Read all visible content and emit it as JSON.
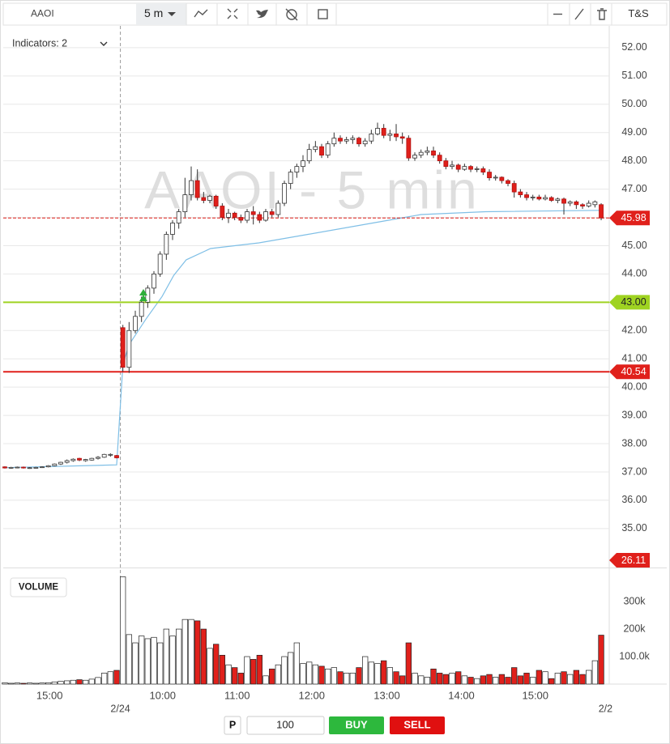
{
  "toolbar": {
    "symbol": "AAOI",
    "interval": "5 m",
    "ts": "T&S"
  },
  "indicators": "Indicators: 2",
  "chart_data": {
    "type": "candlestick",
    "watermark": "AAOI - 5 min",
    "up_color": "#ffffff",
    "down_color": "#e0201b",
    "vwap_color": "#7fbfe6",
    "xlim": [
      -0.26,
      97.3
    ],
    "xticks": [
      {
        "value": 7.2,
        "label": "15:00"
      },
      {
        "value": 25.4,
        "label": "10:00"
      },
      {
        "value": 37.4,
        "label": "11:00"
      },
      {
        "value": 49.4,
        "label": "12:00"
      },
      {
        "value": 61.5,
        "label": "13:00"
      },
      {
        "value": 73.5,
        "label": "14:00"
      },
      {
        "value": 85.4,
        "label": "15:00"
      }
    ],
    "date_ticks": [
      {
        "value": 18.6,
        "label": "2/24"
      },
      {
        "value": 96.7,
        "label": "2/2"
      }
    ],
    "ylim": [
      33.65,
      52.77
    ],
    "yticks": [
      {
        "value": 35,
        "label": "35.00"
      },
      {
        "value": 36,
        "label": "36.00"
      },
      {
        "value": 37,
        "label": "37.00"
      },
      {
        "value": 38,
        "label": "38.00"
      },
      {
        "value": 39,
        "label": "39.00"
      },
      {
        "value": 40,
        "label": "40.00"
      },
      {
        "value": 41,
        "label": "41.00"
      },
      {
        "value": 42,
        "label": "42.00"
      },
      {
        "value": 43,
        "label": "43.00"
      },
      {
        "value": 44,
        "label": "44.00"
      },
      {
        "value": 45,
        "label": "45.00"
      },
      {
        "value": 46,
        "label": "46.00"
      },
      {
        "value": 47,
        "label": "47.00"
      },
      {
        "value": 48,
        "label": "48.00"
      },
      {
        "value": 49,
        "label": "49.00"
      },
      {
        "value": 50,
        "label": "50.00"
      },
      {
        "value": 51,
        "label": "51.00"
      },
      {
        "value": 52,
        "label": "52.00"
      }
    ],
    "grid": true,
    "candles": {
      "x": [
        0,
        1,
        2,
        3,
        4,
        5,
        6,
        7,
        8,
        9,
        10,
        11,
        12,
        13,
        14,
        15,
        16,
        17,
        18,
        19,
        20,
        21,
        22,
        23,
        24,
        25,
        26,
        27,
        28,
        29,
        30,
        31,
        32,
        33,
        34,
        35,
        36,
        37,
        38,
        39,
        40,
        41,
        42,
        43,
        44,
        45,
        46,
        47,
        48,
        49,
        50,
        51,
        52,
        53,
        54,
        55,
        56,
        57,
        58,
        59,
        60,
        61,
        62,
        63,
        64,
        65,
        66,
        67,
        68,
        69,
        70,
        71,
        72,
        73,
        74,
        75,
        76,
        77,
        78,
        79,
        80,
        81,
        82,
        83,
        84,
        85,
        86,
        87,
        88,
        89,
        90,
        91,
        92,
        93,
        94,
        95,
        96
      ],
      "open": [
        37.18,
        37.14,
        37.16,
        37.17,
        37.14,
        37.15,
        37.16,
        37.18,
        37.22,
        37.28,
        37.34,
        37.4,
        37.48,
        37.4,
        37.42,
        37.48,
        37.52,
        37.6,
        37.58,
        42.1,
        40.7,
        42.0,
        42.5,
        43.0,
        43.5,
        44.0,
        44.7,
        45.4,
        45.8,
        46.2,
        46.8,
        47.3,
        46.7,
        46.6,
        46.75,
        46.4,
        46.0,
        46.15,
        46.0,
        45.9,
        46.2,
        46.1,
        45.9,
        46.2,
        46.1,
        46.5,
        47.2,
        47.6,
        47.8,
        48.0,
        48.4,
        48.5,
        48.2,
        48.6,
        48.8,
        48.7,
        48.75,
        48.8,
        48.6,
        48.7,
        48.95,
        49.15,
        48.9,
        48.95,
        48.85,
        48.8,
        48.1,
        48.2,
        48.3,
        48.35,
        48.2,
        48.0,
        47.8,
        47.85,
        47.7,
        47.8,
        47.7,
        47.72,
        47.6,
        47.4,
        47.42,
        47.3,
        47.2,
        46.9,
        46.8,
        46.7,
        46.72,
        46.65,
        46.7,
        46.6,
        46.65,
        46.5,
        46.55,
        46.45,
        46.4,
        46.45,
        46.45
      ],
      "high": [
        37.2,
        37.18,
        37.19,
        37.19,
        37.17,
        37.18,
        37.2,
        37.24,
        37.3,
        37.36,
        37.44,
        37.48,
        37.5,
        37.46,
        37.5,
        37.56,
        37.64,
        37.66,
        37.6,
        42.2,
        42.3,
        42.7,
        43.2,
        43.6,
        44.1,
        44.8,
        45.5,
        45.9,
        46.3,
        47.4,
        47.8,
        47.7,
        46.9,
        46.8,
        46.8,
        46.5,
        46.3,
        46.2,
        46.1,
        46.3,
        46.4,
        46.2,
        46.3,
        46.3,
        46.6,
        47.3,
        47.7,
        47.9,
        48.2,
        48.6,
        48.7,
        48.6,
        48.7,
        49.0,
        48.9,
        48.85,
        48.9,
        48.85,
        48.8,
        49.1,
        49.35,
        49.3,
        49.1,
        49.3,
        49.0,
        48.9,
        48.3,
        48.4,
        48.5,
        48.5,
        48.3,
        48.1,
        48.0,
        47.9,
        47.9,
        47.85,
        47.8,
        47.8,
        47.7,
        47.5,
        47.45,
        47.35,
        47.3,
        47.0,
        46.9,
        46.8,
        46.8,
        46.8,
        46.75,
        46.7,
        46.7,
        46.6,
        46.6,
        46.5,
        46.6,
        46.6,
        46.5
      ],
      "low": [
        37.12,
        37.12,
        37.13,
        37.12,
        37.11,
        37.13,
        37.14,
        37.16,
        37.2,
        37.25,
        37.3,
        37.36,
        37.38,
        37.36,
        37.4,
        37.44,
        37.5,
        37.54,
        37.48,
        40.55,
        40.5,
        41.9,
        42.3,
        42.8,
        43.3,
        43.9,
        44.5,
        45.2,
        45.6,
        46.0,
        46.6,
        46.6,
        46.5,
        46.5,
        46.3,
        45.9,
        45.8,
        45.9,
        45.8,
        45.8,
        45.75,
        45.8,
        45.85,
        46.0,
        46.0,
        46.4,
        47.0,
        47.4,
        47.6,
        47.9,
        48.3,
        48.1,
        48.1,
        48.5,
        48.6,
        48.6,
        48.6,
        48.5,
        48.5,
        48.6,
        48.9,
        48.8,
        48.7,
        48.7,
        48.6,
        48.0,
        48.0,
        48.1,
        48.2,
        48.1,
        47.9,
        47.7,
        47.7,
        47.6,
        47.65,
        47.6,
        47.6,
        47.5,
        47.3,
        47.3,
        47.2,
        47.1,
        46.7,
        46.7,
        46.6,
        46.6,
        46.6,
        46.6,
        46.55,
        46.5,
        46.1,
        46.4,
        46.3,
        46.3,
        46.35,
        46.35,
        45.9
      ],
      "close": [
        37.14,
        37.16,
        37.17,
        37.14,
        37.15,
        37.16,
        37.18,
        37.22,
        37.28,
        37.34,
        37.4,
        37.45,
        37.42,
        37.44,
        37.48,
        37.52,
        37.62,
        37.62,
        37.5,
        40.7,
        42.0,
        42.5,
        43.0,
        43.5,
        44.0,
        44.7,
        45.4,
        45.8,
        46.2,
        46.8,
        47.3,
        46.7,
        46.6,
        46.75,
        46.4,
        46.0,
        46.15,
        46.0,
        45.9,
        46.2,
        46.1,
        45.9,
        46.2,
        46.1,
        46.5,
        47.2,
        47.6,
        47.8,
        48.0,
        48.4,
        48.5,
        48.2,
        48.6,
        48.8,
        48.7,
        48.75,
        48.8,
        48.6,
        48.7,
        48.95,
        49.15,
        48.9,
        48.95,
        48.85,
        48.8,
        48.1,
        48.2,
        48.3,
        48.35,
        48.2,
        48.0,
        47.8,
        47.85,
        47.7,
        47.8,
        47.7,
        47.72,
        47.6,
        47.4,
        47.42,
        47.3,
        47.2,
        46.9,
        46.8,
        46.7,
        46.72,
        46.65,
        46.7,
        46.6,
        46.65,
        46.5,
        46.55,
        46.45,
        46.4,
        46.5,
        46.55,
        45.98
      ],
      "volume": [
        5000,
        3000,
        4000,
        3000,
        4000,
        3000,
        4000,
        5000,
        8000,
        10000,
        12000,
        14000,
        16000,
        14000,
        18000,
        24000,
        40000,
        45000,
        50000,
        390000,
        180000,
        150000,
        175000,
        165000,
        170000,
        150000,
        200000,
        175000,
        200000,
        235000,
        235000,
        230000,
        200000,
        130000,
        145000,
        105000,
        70000,
        60000,
        40000,
        100000,
        90000,
        105000,
        30000,
        55000,
        70000,
        100000,
        115000,
        150000,
        75000,
        80000,
        70000,
        65000,
        55000,
        60000,
        45000,
        40000,
        40000,
        60000,
        100000,
        80000,
        75000,
        85000,
        60000,
        45000,
        30000,
        150000,
        40000,
        30000,
        25000,
        55000,
        40000,
        35000,
        40000,
        45000,
        30000,
        25000,
        20000,
        30000,
        35000,
        25000,
        35000,
        25000,
        60000,
        30000,
        40000,
        25000,
        50000,
        45000,
        20000,
        40000,
        45000,
        35000,
        50000,
        35000,
        50000,
        85000,
        178000
      ]
    },
    "vwap": {
      "x": [
        0,
        18,
        19,
        20,
        22.7,
        25.3,
        27.2,
        29.2,
        33.1,
        40.9,
        48.8,
        59.2,
        67,
        77.4,
        96
      ],
      "values": [
        37.15,
        37.25,
        40.8,
        41.5,
        42.4,
        43.2,
        43.95,
        44.5,
        44.9,
        45.1,
        45.4,
        45.8,
        46.1,
        46.2,
        46.25
      ]
    },
    "levels": [
      {
        "value": 45.98,
        "label": "45.98",
        "color": "#e0201b",
        "label_color": "#ffffff",
        "dashed": true
      },
      {
        "value": 43.0,
        "label": "43.00",
        "color": "#9fd321",
        "label_color": "#222222",
        "dashed": false
      },
      {
        "value": 40.54,
        "label": "40.54",
        "color": "#e0201b",
        "label_color": "#ffffff",
        "dashed": false
      }
    ],
    "offscale_tag": "26.11",
    "volume_label": "VOLUME",
    "volume_ylim": [
      0,
      418000
    ],
    "volume_ticks": [
      {
        "value": 100000,
        "label": "100.0k"
      },
      {
        "value": 200000,
        "label": "200k"
      },
      {
        "value": 300000,
        "label": "300k"
      }
    ]
  },
  "order": {
    "p": "P",
    "quantity": "100",
    "buy": "BUY",
    "sell": "SELL"
  }
}
